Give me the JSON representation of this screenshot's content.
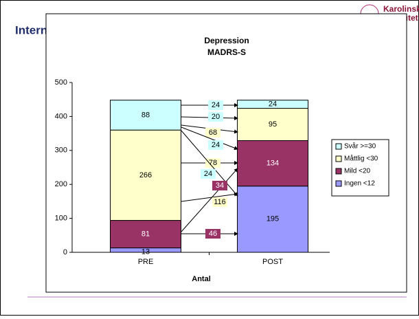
{
  "header_title": "Internetpsykiatri",
  "logo": {
    "line1": "Karolinska",
    "line2": "Institutet"
  },
  "chart_data": {
    "type": "stacked-bar",
    "title": "Depression",
    "subtitle": "MADRS-S",
    "x_label": "Antal",
    "categories": [
      "PRE",
      "POST"
    ],
    "series": [
      {
        "name": "Ingen <12",
        "color": "#9999ff",
        "values": [
          13,
          195
        ]
      },
      {
        "name": "Mild <20",
        "color": "#993366",
        "values": [
          81,
          134
        ]
      },
      {
        "name": "Måttlig <30",
        "color": "#ffffcc",
        "values": [
          266,
          95
        ]
      },
      {
        "name": "Svår >=30",
        "color": "#ccffff",
        "values": [
          88,
          24
        ]
      }
    ],
    "flows": [
      24,
      20,
      68,
      24,
      78,
      24,
      34,
      116,
      46
    ],
    "ylim": [
      0,
      500
    ],
    "yticks": [
      0,
      100,
      200,
      300,
      400,
      500
    ],
    "legend": "right"
  }
}
